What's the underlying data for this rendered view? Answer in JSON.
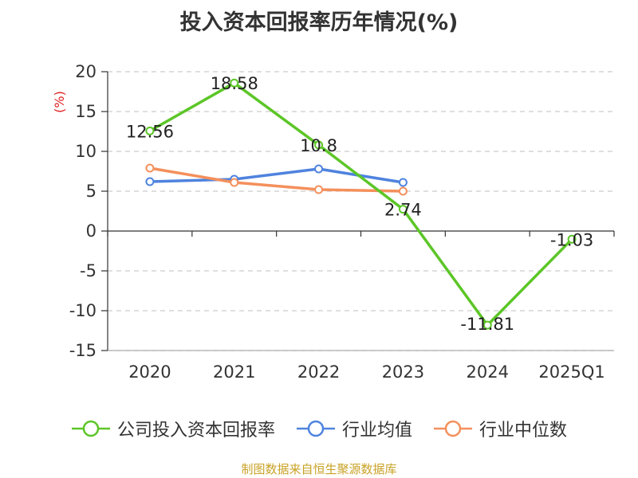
{
  "chart_data": {
    "type": "line",
    "title": "投入资本回报率历年情况(%)",
    "ylabel": "(%)",
    "xlabel": "",
    "categories": [
      "2020",
      "2021",
      "2022",
      "2023",
      "2024",
      "2025Q1"
    ],
    "ylim": [
      -15,
      20
    ],
    "yticks": [
      20,
      15,
      10,
      5,
      0,
      -5,
      -10,
      -15
    ],
    "grid": true,
    "legend_position": "bottom",
    "series": [
      {
        "name": "公司投入资本回报率",
        "color": "#5cc627",
        "values": [
          12.56,
          18.58,
          10.8,
          2.74,
          -11.81,
          -1.03
        ],
        "labels": [
          "12.56",
          "18.58",
          "10.8",
          "2.74",
          "-11.81",
          "-1.03"
        ]
      },
      {
        "name": "行业均值",
        "color": "#4f83de",
        "values": [
          6.2,
          6.5,
          7.8,
          6.1,
          null,
          null
        ]
      },
      {
        "name": "行业中位数",
        "color": "#f4905c",
        "values": [
          7.9,
          6.1,
          5.2,
          5.0,
          null,
          null
        ]
      }
    ]
  },
  "source": "制图数据来自恒生聚源数据库"
}
